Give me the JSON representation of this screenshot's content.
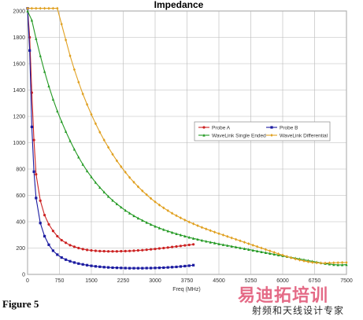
{
  "figure_caption": "Figure 5",
  "watermark": {
    "line1": "易迪拓培训",
    "line2": "射频和天线设计专家"
  },
  "chart_data": {
    "type": "line",
    "title": "Impedance",
    "xlabel": "Freq (MHz)",
    "ylabel": "",
    "xlim": [
      0,
      7500
    ],
    "ylim": [
      0,
      2000
    ],
    "xticks": [
      0,
      750,
      1500,
      2250,
      3000,
      3750,
      4500,
      5250,
      6000,
      6750,
      7500
    ],
    "yticks": [
      0,
      200,
      400,
      600,
      800,
      1000,
      1200,
      1400,
      1600,
      1800,
      2000
    ],
    "grid": true,
    "legend": "center-right",
    "series": [
      {
        "name": "Probe A",
        "color": "#cc2222",
        "marker": "circle",
        "x": [
          0,
          50,
          100,
          150,
          200,
          300,
          400,
          500,
          600,
          700,
          800,
          900,
          1000,
          1100,
          1200,
          1300,
          1400,
          1500,
          1600,
          1700,
          1800,
          1900,
          2000,
          2100,
          2200,
          2300,
          2400,
          2500,
          2600,
          2700,
          2800,
          2900,
          3000,
          3100,
          3200,
          3300,
          3400,
          3500,
          3600,
          3700,
          3800,
          3900
        ],
        "y": [
          2020,
          1800,
          1380,
          1020,
          760,
          560,
          450,
          380,
          330,
          290,
          260,
          240,
          222,
          210,
          200,
          192,
          186,
          182,
          179,
          177,
          176,
          175,
          175,
          175,
          176,
          177,
          178,
          180,
          182,
          184,
          187,
          190,
          193,
          197,
          200,
          204,
          208,
          212,
          216,
          220,
          224,
          228
        ]
      },
      {
        "name": "Probe B",
        "color": "#1a1aa0",
        "marker": "square",
        "x": [
          0,
          50,
          100,
          150,
          200,
          300,
          400,
          500,
          600,
          700,
          800,
          900,
          1000,
          1100,
          1200,
          1300,
          1400,
          1500,
          1600,
          1700,
          1800,
          1900,
          2000,
          2100,
          2200,
          2300,
          2400,
          2500,
          2600,
          2700,
          2800,
          2900,
          3000,
          3100,
          3200,
          3300,
          3400,
          3500,
          3600,
          3700,
          3800,
          3900
        ],
        "y": [
          2020,
          1700,
          1120,
          780,
          580,
          390,
          290,
          225,
          180,
          150,
          128,
          112,
          100,
          90,
          82,
          76,
          70,
          65,
          61,
          58,
          55,
          53,
          51,
          50,
          49,
          48,
          47,
          47,
          47,
          47,
          48,
          48,
          49,
          50,
          51,
          53,
          55,
          57,
          60,
          63,
          66,
          70
        ]
      },
      {
        "name": "WaveLink Single Ended",
        "color": "#229922",
        "marker": "triangle",
        "x": [
          0,
          100,
          200,
          300,
          400,
          500,
          600,
          700,
          800,
          900,
          1000,
          1100,
          1200,
          1300,
          1400,
          1500,
          1600,
          1700,
          1800,
          1900,
          2000,
          2100,
          2200,
          2300,
          2400,
          2500,
          2600,
          2700,
          2800,
          2900,
          3000,
          3100,
          3200,
          3300,
          3400,
          3500,
          3600,
          3700,
          3800,
          3900,
          4000,
          4100,
          4200,
          4300,
          4400,
          4500,
          4600,
          4700,
          4800,
          4900,
          5000,
          5100,
          5200,
          5300,
          5400,
          5500,
          5600,
          5700,
          5800,
          5900,
          6000,
          6100,
          6200,
          6300,
          6400,
          6500,
          6600,
          6700,
          6800,
          6900,
          7000,
          7100,
          7200,
          7300,
          7400,
          7500
        ],
        "y": [
          2000,
          1930,
          1790,
          1660,
          1540,
          1430,
          1330,
          1240,
          1160,
          1085,
          1015,
          950,
          890,
          835,
          785,
          740,
          698,
          660,
          625,
          592,
          562,
          535,
          510,
          486,
          465,
          445,
          427,
          410,
          394,
          379,
          365,
          352,
          340,
          329,
          318,
          308,
          299,
          290,
          281,
          273,
          266,
          258,
          251,
          244,
          238,
          231,
          225,
          219,
          213,
          207,
          201,
          195,
          189,
          183,
          177,
          171,
          165,
          159,
          153,
          147,
          141,
          135,
          129,
          123,
          117,
          111,
          105,
          99,
          93,
          87,
          82,
          78,
          74,
          72,
          72,
          74
        ]
      },
      {
        "name": "WaveLink Differential",
        "color": "#e0a020",
        "marker": "diamond",
        "x": [
          0,
          100,
          200,
          300,
          400,
          500,
          600,
          700,
          800,
          900,
          1000,
          1100,
          1200,
          1300,
          1400,
          1500,
          1600,
          1700,
          1800,
          1900,
          2000,
          2100,
          2200,
          2300,
          2400,
          2500,
          2600,
          2700,
          2800,
          2900,
          3000,
          3100,
          3200,
          3300,
          3400,
          3500,
          3600,
          3700,
          3800,
          3900,
          4000,
          4100,
          4200,
          4300,
          4400,
          4500,
          4600,
          4700,
          4800,
          4900,
          5000,
          5100,
          5200,
          5300,
          5400,
          5500,
          5600,
          5700,
          5800,
          5900,
          6000,
          6100,
          6200,
          6300,
          6400,
          6500,
          6600,
          6700,
          6800,
          6900,
          7000,
          7100,
          7200,
          7300,
          7400,
          7500
        ],
        "y": [
          2020,
          2020,
          2020,
          2020,
          2020,
          2020,
          2020,
          2020,
          1900,
          1780,
          1660,
          1555,
          1460,
          1370,
          1290,
          1215,
          1145,
          1080,
          1020,
          965,
          912,
          863,
          818,
          776,
          736,
          700,
          666,
          634,
          605,
          577,
          551,
          527,
          505,
          484,
          464,
          446,
          429,
          413,
          398,
          384,
          370,
          357,
          345,
          333,
          321,
          310,
          299,
          288,
          277,
          266,
          255,
          244,
          233,
          222,
          211,
          200,
          189,
          178,
          167,
          156,
          146,
          136,
          126,
          117,
          109,
          102,
          96,
          91,
          88,
          86,
          86,
          87,
          88,
          89,
          90,
          90
        ]
      }
    ]
  }
}
